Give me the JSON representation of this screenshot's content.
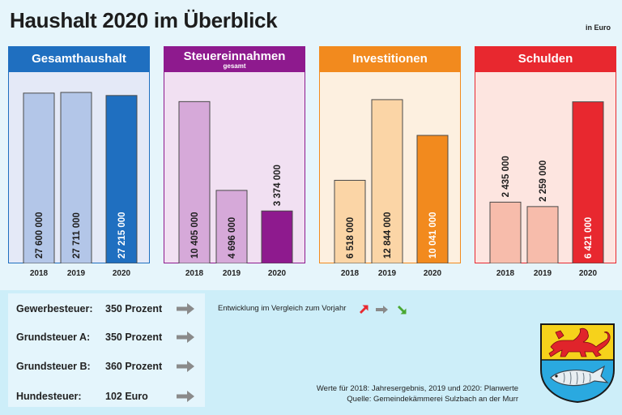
{
  "header": {
    "title": "Haushalt 2020 im Überblick",
    "unit": "in Euro"
  },
  "colors": {
    "background": "#e6f5fb",
    "lower_band": "#cdeef9",
    "gesamthaushalt": "#1f6fc0",
    "steuereinnahmen": "#8e1a8e",
    "investitionen": "#f28a1e",
    "schulden": "#e8282f",
    "trend_up": "#e8282f",
    "trend_flat": "#8a8a8a",
    "trend_down": "#4aa832"
  },
  "chart_data": [
    {
      "type": "bar",
      "title": "Gesamthaushalt",
      "subtitle": "",
      "categories": [
        "2018",
        "2019",
        "2020"
      ],
      "values": [
        27600000,
        27711000,
        27215000
      ],
      "labels": [
        "27 600 000",
        "27 711 000",
        "27 215 000"
      ],
      "ylim": [
        0,
        31000000
      ],
      "colors": [
        "#b3c6e8",
        "#b3c6e8",
        "#1f6fc0"
      ],
      "panel_bg": "#e4e9f7",
      "head_color": "#1f6fc0",
      "label_inside": [
        true,
        true,
        true
      ],
      "label_light": [
        false,
        false,
        true
      ]
    },
    {
      "type": "bar",
      "title": "Steuereinnahmen",
      "subtitle": "gesamt",
      "categories": [
        "2018",
        "2019",
        "2020"
      ],
      "values": [
        10405000,
        4696000,
        3374000
      ],
      "labels": [
        "10 405 000",
        "4 696 000",
        "3 374 000"
      ],
      "ylim": [
        0,
        12300000
      ],
      "colors": [
        "#d6a9d9",
        "#d6a9d9",
        "#8e1a8e"
      ],
      "panel_bg": "#f1e0f2",
      "head_color": "#8e1a8e",
      "label_inside": [
        true,
        true,
        false
      ],
      "label_light": [
        false,
        false,
        false
      ]
    },
    {
      "type": "bar",
      "title": "Investitionen",
      "subtitle": "",
      "categories": [
        "2018",
        "2019",
        "2020"
      ],
      "values": [
        6518000,
        12844000,
        10041000
      ],
      "labels": [
        "6 518 000",
        "12 844 000",
        "10 041 000"
      ],
      "ylim": [
        0,
        15000000
      ],
      "colors": [
        "#fbd5a6",
        "#fbd5a6",
        "#f28a1e"
      ],
      "panel_bg": "#fdf0e0",
      "head_color": "#f28a1e",
      "label_inside": [
        true,
        true,
        true
      ],
      "label_light": [
        false,
        false,
        true
      ]
    },
    {
      "type": "bar",
      "title": "Schulden",
      "subtitle": "",
      "categories": [
        "2018",
        "2019",
        "2020"
      ],
      "values": [
        2435000,
        2259000,
        6421000
      ],
      "labels": [
        "2 435 000",
        "2 259 000",
        "6 421 000"
      ],
      "ylim": [
        0,
        7600000
      ],
      "colors": [
        "#f7bcab",
        "#f7bcab",
        "#e8282f"
      ],
      "panel_bg": "#fde5e0",
      "head_color": "#e8282f",
      "label_inside": [
        false,
        false,
        true
      ],
      "label_light": [
        false,
        false,
        true
      ]
    }
  ],
  "taxes": [
    {
      "label": "Gewerbesteuer:",
      "value": "350 Prozent",
      "trend": "flat"
    },
    {
      "label": "Grundsteuer A:",
      "value": "350 Prozent",
      "trend": "flat"
    },
    {
      "label": "Grundsteuer B:",
      "value": "360 Prozent",
      "trend": "flat"
    },
    {
      "label": "Hundesteuer:",
      "value": "102 Euro",
      "trend": "flat"
    }
  ],
  "legend": {
    "text": "Entwicklung im Vergleich zum Vorjahr",
    "icons": [
      "arrow-up-right",
      "arrow-right",
      "arrow-down-right"
    ]
  },
  "notes": {
    "line1": "Werte für 2018: Jahresergebnis, 2019 und 2020: Planwerte",
    "line2": "Quelle:  Gemeindekämmerei Sulzbach an der Murr"
  },
  "crest": {
    "top_color": "#f6d21b",
    "bottom_color": "#2aa9e0",
    "lion_color": "#e0242b"
  }
}
